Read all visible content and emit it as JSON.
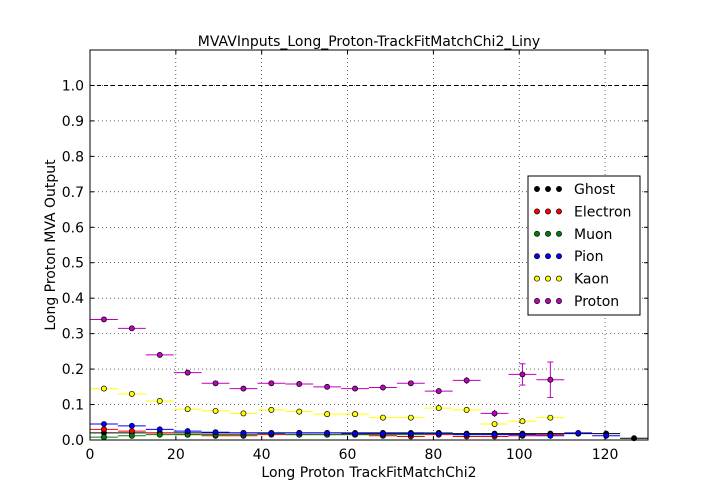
{
  "chart_data": {
    "type": "scatter",
    "title": "MVAVInputs_Long_Proton-TrackFitMatchChi2_Liny",
    "xlabel": "Long Proton TrackFitMatchChi2",
    "ylabel": "Long Proton MVA Output",
    "xlim": [
      0,
      130
    ],
    "ylim": [
      0,
      1.1
    ],
    "xticks": [
      0,
      20,
      40,
      60,
      80,
      100,
      120
    ],
    "yticks": [
      0.0,
      0.1,
      0.2,
      0.3,
      0.4,
      0.5,
      0.6,
      0.7,
      0.8,
      0.9,
      1.0
    ],
    "reference_line": 1.0,
    "grid": true,
    "legend_position": "right",
    "bin_width": 6.5,
    "series": [
      {
        "name": "Ghost",
        "color": "#000000",
        "x": [
          3.25,
          9.75,
          16.25,
          22.75,
          29.25,
          35.75,
          42.25,
          48.75,
          55.25,
          61.75,
          68.25,
          74.75,
          81.25,
          87.75,
          94.25,
          100.75,
          107.25,
          113.75,
          120.25,
          126.75
        ],
        "y": [
          0.02,
          0.02,
          0.02,
          0.02,
          0.02,
          0.02,
          0.02,
          0.02,
          0.02,
          0.02,
          0.02,
          0.02,
          0.02,
          0.018,
          0.018,
          0.018,
          0.018,
          0.018,
          0.018,
          0.005
        ]
      },
      {
        "name": "Electron",
        "color": "#ff0000",
        "x": [
          3.25,
          9.75,
          16.25,
          22.75,
          29.25,
          35.75,
          42.25,
          48.75,
          55.25,
          61.75,
          68.25,
          74.75,
          81.25,
          87.75,
          94.25,
          100.75,
          107.25
        ],
        "y": [
          0.03,
          0.025,
          0.02,
          0.015,
          0.012,
          0.012,
          0.015,
          0.015,
          0.015,
          0.015,
          0.012,
          0.01,
          0.015,
          0.01,
          0.01,
          0.012,
          0.015
        ]
      },
      {
        "name": "Muon",
        "color": "#008000",
        "x": [
          3.25,
          9.75,
          16.25,
          22.75,
          29.25,
          35.75,
          42.25,
          48.75,
          55.25,
          61.75,
          68.25,
          74.75,
          81.25,
          87.75,
          94.25,
          100.75
        ],
        "y": [
          0.008,
          0.012,
          0.015,
          0.015,
          0.015,
          0.015,
          0.018,
          0.015,
          0.015,
          0.015,
          0.015,
          0.015,
          0.02,
          0.015,
          0.015,
          0.015
        ]
      },
      {
        "name": "Pion",
        "color": "#0000ff",
        "x": [
          3.25,
          9.75,
          16.25,
          22.75,
          29.25,
          35.75,
          42.25,
          48.75,
          55.25,
          61.75,
          68.25,
          74.75,
          81.25,
          87.75,
          94.25,
          100.75,
          107.25,
          113.75,
          120.25
        ],
        "y": [
          0.045,
          0.04,
          0.03,
          0.025,
          0.022,
          0.02,
          0.02,
          0.02,
          0.02,
          0.018,
          0.018,
          0.018,
          0.018,
          0.015,
          0.015,
          0.015,
          0.012,
          0.02,
          0.012
        ]
      },
      {
        "name": "Kaon",
        "color": "#ffff00",
        "x": [
          3.25,
          9.75,
          16.25,
          22.75,
          29.25,
          35.75,
          42.25,
          48.75,
          55.25,
          61.75,
          68.25,
          74.75,
          81.25,
          87.75,
          94.25,
          100.75,
          107.25
        ],
        "y": [
          0.145,
          0.13,
          0.11,
          0.087,
          0.082,
          0.075,
          0.085,
          0.08,
          0.073,
          0.073,
          0.063,
          0.063,
          0.09,
          0.085,
          0.045,
          0.053,
          0.063
        ]
      },
      {
        "name": "Proton",
        "color": "#bf00bf",
        "x": [
          3.25,
          9.75,
          16.25,
          22.75,
          29.25,
          35.75,
          42.25,
          48.75,
          55.25,
          61.75,
          68.25,
          74.75,
          81.25,
          87.75,
          94.25,
          100.75,
          107.25
        ],
        "y": [
          0.34,
          0.315,
          0.24,
          0.19,
          0.16,
          0.145,
          0.16,
          0.158,
          0.15,
          0.145,
          0.148,
          0.16,
          0.138,
          0.168,
          0.075,
          0.185,
          0.17
        ],
        "yerr": [
          0.004,
          0.004,
          0.005,
          0.005,
          0.005,
          0.005,
          0.005,
          0.005,
          0.005,
          0.005,
          0.006,
          0.006,
          0.008,
          0.01,
          0.01,
          0.03,
          0.05
        ]
      }
    ]
  }
}
